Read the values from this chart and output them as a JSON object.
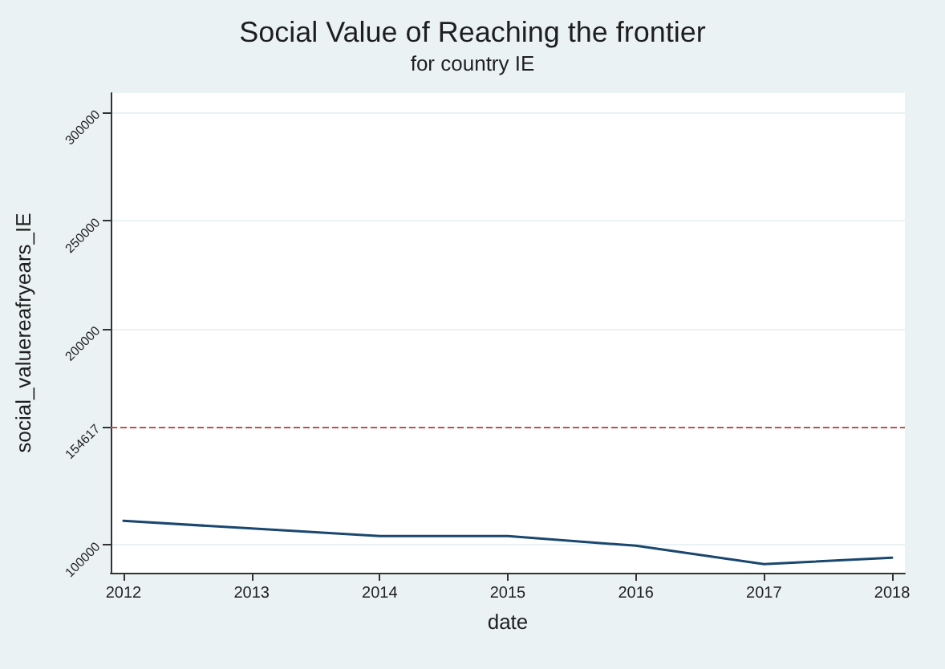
{
  "chart_data": {
    "type": "line",
    "title": "Social Value of Reaching the frontier",
    "subtitle": "for country IE",
    "xlabel": "date",
    "ylabel": "social_valuereafryears_IE",
    "x": [
      2012,
      2013,
      2014,
      2015,
      2016,
      2017,
      2018
    ],
    "series": [
      {
        "color": "#1a476f",
        "values": [
          111000,
          107500,
          104000,
          104000,
          99500,
          91000,
          94000
        ]
      }
    ],
    "xlim": [
      2011.9,
      2018.1
    ],
    "xticks": [
      2012,
      2013,
      2014,
      2015,
      2016,
      2017,
      2018
    ],
    "ylim": [
      87000,
      309000
    ],
    "yticks": [
      100000,
      154617,
      200000,
      250000,
      300000
    ],
    "ref_lines": [
      {
        "axis": "y",
        "value": 154617,
        "color": "#c0504d",
        "line_style": "dashed"
      }
    ],
    "grid": "y",
    "marker": "none",
    "line_style": "solid"
  }
}
